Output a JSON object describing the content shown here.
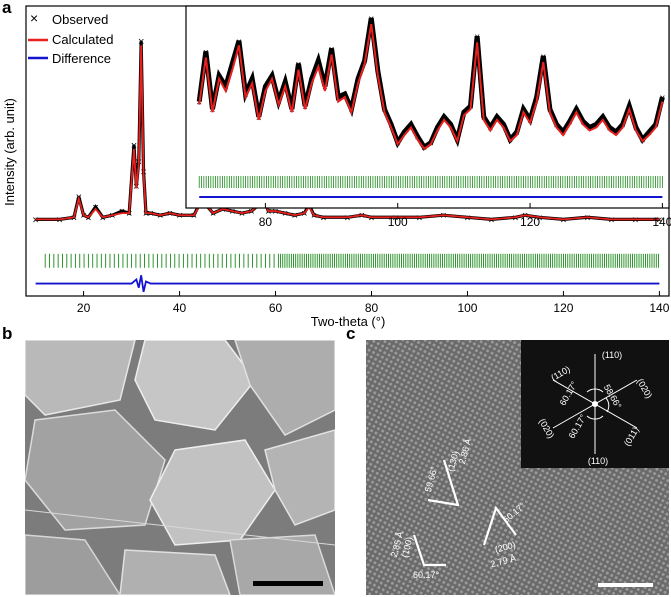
{
  "panels": {
    "a": "a",
    "b": "b",
    "c": "c"
  },
  "chart_data": [
    {
      "type": "line",
      "panel": "a",
      "xlabel": "Two-theta (°)",
      "ylabel": "Intensity (arb. unit)",
      "xlim": [
        8,
        142
      ],
      "ylim": [
        -0.35,
        1.05
      ],
      "xticks": [
        20,
        40,
        60,
        80,
        100,
        120,
        140
      ],
      "legend_position": "top-left",
      "legend": [
        "Observed",
        "Calculated",
        "Difference"
      ],
      "colors": {
        "observed": "#000000",
        "calculated": "#e8201e",
        "difference": "#1414d0",
        "ticks": "#1a8a1a"
      },
      "series": [
        {
          "name": "Observed",
          "marker": "x",
          "x": [
            10,
            15,
            18,
            19,
            20,
            21,
            22.5,
            24,
            26,
            28,
            29.5,
            30.5,
            31,
            31.5,
            32,
            32.5,
            33,
            34,
            36,
            38,
            40,
            43,
            44.5,
            45,
            45.5,
            47,
            49,
            51,
            53,
            55,
            56.5,
            57.5,
            58,
            58.5,
            60,
            62,
            64,
            66,
            67,
            68,
            70,
            75,
            78,
            80,
            85,
            90,
            95,
            100,
            105,
            110,
            112,
            115,
            120,
            125,
            130,
            135,
            140
          ],
          "y": [
            0.02,
            0.02,
            0.03,
            0.13,
            0.04,
            0.03,
            0.08,
            0.03,
            0.04,
            0.06,
            0.05,
            0.38,
            0.18,
            0.3,
            0.88,
            0.25,
            0.05,
            0.05,
            0.04,
            0.05,
            0.04,
            0.04,
            0.11,
            0.15,
            0.09,
            0.05,
            0.07,
            0.06,
            0.05,
            0.06,
            0.09,
            0.11,
            0.09,
            0.06,
            0.06,
            0.05,
            0.04,
            0.05,
            0.09,
            0.04,
            0.03,
            0.03,
            0.04,
            0.03,
            0.03,
            0.03,
            0.04,
            0.03,
            0.02,
            0.03,
            0.04,
            0.03,
            0.02,
            0.03,
            0.02,
            0.02,
            0.02
          ]
        },
        {
          "name": "Calculated",
          "x": [
            10,
            15,
            18,
            19,
            20,
            21,
            22.5,
            24,
            26,
            28,
            29.5,
            30.5,
            31,
            31.5,
            32,
            32.5,
            33,
            34,
            36,
            38,
            40,
            43,
            44.5,
            45,
            45.5,
            47,
            49,
            51,
            53,
            55,
            56.5,
            57.5,
            58,
            58.5,
            60,
            62,
            64,
            66,
            67,
            68,
            70,
            75,
            78,
            80,
            85,
            90,
            95,
            100,
            105,
            110,
            112,
            115,
            120,
            125,
            130,
            135,
            140
          ],
          "y": [
            0.02,
            0.02,
            0.03,
            0.12,
            0.04,
            0.03,
            0.07,
            0.03,
            0.04,
            0.05,
            0.05,
            0.36,
            0.17,
            0.29,
            0.86,
            0.24,
            0.05,
            0.05,
            0.04,
            0.05,
            0.04,
            0.04,
            0.1,
            0.14,
            0.09,
            0.05,
            0.07,
            0.06,
            0.05,
            0.06,
            0.09,
            0.1,
            0.09,
            0.06,
            0.06,
            0.05,
            0.04,
            0.05,
            0.08,
            0.04,
            0.03,
            0.03,
            0.04,
            0.03,
            0.03,
            0.03,
            0.04,
            0.03,
            0.02,
            0.03,
            0.04,
            0.03,
            0.02,
            0.03,
            0.02,
            0.02,
            0.02
          ]
        },
        {
          "name": "Difference",
          "x": [
            10,
            28,
            30,
            31,
            31.5,
            32,
            32.5,
            33,
            34,
            40,
            60,
            80,
            100,
            120,
            140
          ],
          "y": [
            -0.29,
            -0.29,
            -0.29,
            -0.27,
            -0.31,
            -0.25,
            -0.33,
            -0.28,
            -0.29,
            -0.29,
            -0.29,
            -0.29,
            -0.29,
            -0.29,
            -0.29
          ]
        }
      ],
      "reflection_ticks": {
        "y_value": -0.18,
        "first": 12,
        "last": 140
      }
    },
    {
      "type": "line",
      "panel": "a-inset",
      "xlim": [
        68,
        141
      ],
      "xticks": [
        80,
        100,
        120,
        140
      ],
      "series": [
        {
          "name": "Observed",
          "x": [
            70,
            71,
            72,
            73,
            74,
            75,
            76,
            77,
            78,
            79,
            80,
            81,
            82,
            83,
            84,
            85,
            86,
            87,
            88,
            89,
            90,
            91,
            92,
            93,
            94,
            95,
            96,
            97,
            98,
            99,
            100,
            101,
            102,
            103,
            104,
            105,
            106,
            107,
            108,
            109,
            110,
            111,
            112,
            113,
            114,
            115,
            116,
            117,
            118,
            119,
            120,
            121,
            122,
            123,
            124,
            125,
            126,
            127,
            128,
            129,
            130,
            131,
            132,
            133,
            134,
            135,
            136,
            137,
            138,
            139,
            140
          ],
          "y": [
            0.45,
            0.78,
            0.4,
            0.62,
            0.55,
            0.7,
            0.85,
            0.5,
            0.6,
            0.35,
            0.55,
            0.62,
            0.45,
            0.58,
            0.4,
            0.7,
            0.42,
            0.6,
            0.72,
            0.55,
            0.8,
            0.48,
            0.5,
            0.4,
            0.6,
            0.72,
            1.0,
            0.65,
            0.4,
            0.3,
            0.18,
            0.25,
            0.3,
            0.22,
            0.15,
            0.18,
            0.28,
            0.35,
            0.3,
            0.2,
            0.38,
            0.42,
            0.88,
            0.35,
            0.28,
            0.35,
            0.3,
            0.2,
            0.25,
            0.4,
            0.33,
            0.48,
            0.75,
            0.4,
            0.3,
            0.25,
            0.32,
            0.4,
            0.32,
            0.28,
            0.3,
            0.35,
            0.28,
            0.25,
            0.3,
            0.42,
            0.28,
            0.2,
            0.25,
            0.3,
            0.48
          ]
        },
        {
          "name": "Calculated",
          "x": [
            70,
            71,
            72,
            73,
            74,
            75,
            76,
            77,
            78,
            79,
            80,
            81,
            82,
            83,
            84,
            85,
            86,
            87,
            88,
            89,
            90,
            91,
            92,
            93,
            94,
            95,
            96,
            97,
            98,
            99,
            100,
            101,
            102,
            103,
            104,
            105,
            106,
            107,
            108,
            109,
            110,
            111,
            112,
            113,
            114,
            115,
            116,
            117,
            118,
            119,
            120,
            121,
            122,
            123,
            124,
            125,
            126,
            127,
            128,
            129,
            130,
            131,
            132,
            133,
            134,
            135,
            136,
            137,
            138,
            139,
            140
          ],
          "y": [
            0.43,
            0.74,
            0.38,
            0.6,
            0.52,
            0.66,
            0.82,
            0.48,
            0.57,
            0.33,
            0.52,
            0.6,
            0.43,
            0.55,
            0.38,
            0.66,
            0.4,
            0.57,
            0.68,
            0.52,
            0.76,
            0.45,
            0.48,
            0.38,
            0.57,
            0.7,
            0.96,
            0.62,
            0.38,
            0.28,
            0.17,
            0.23,
            0.28,
            0.2,
            0.14,
            0.17,
            0.26,
            0.33,
            0.28,
            0.19,
            0.36,
            0.4,
            0.84,
            0.33,
            0.26,
            0.33,
            0.28,
            0.19,
            0.23,
            0.38,
            0.31,
            0.45,
            0.71,
            0.38,
            0.28,
            0.23,
            0.3,
            0.38,
            0.3,
            0.26,
            0.28,
            0.33,
            0.26,
            0.23,
            0.28,
            0.4,
            0.26,
            0.19,
            0.23,
            0.28,
            0.45
          ]
        }
      ]
    }
  ],
  "panel_c": {
    "fft_labels": [
      "(110)",
      "(110)",
      "(020)",
      "(020)",
      "(110)",
      "(011)",
      "60.17°",
      "58.66°",
      "60.17°"
    ],
    "lattice_labels": [
      "59.66°",
      "2.86 Å",
      "(130)",
      "60.17°",
      "(200)",
      "2.79 Å",
      "2.85 Å",
      "(100)",
      "60.17°"
    ]
  }
}
